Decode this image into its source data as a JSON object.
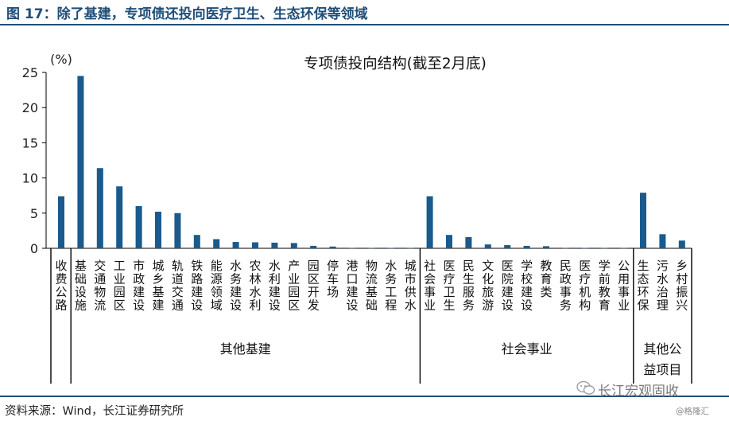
{
  "figure": {
    "title": "图 17：除了基建，专项债还投向医疗卫生、生态环保等领域",
    "source": "资料来源：Wind，长江证券研究所",
    "watermark": "长江宏观固收",
    "watermark_handle": "@格隆汇"
  },
  "colors": {
    "bar": "#1a5a8c",
    "header": "#1f4e79",
    "axis": "#000000"
  },
  "chart_data": {
    "type": "bar",
    "title": "专项债投向结构(截至2月底)",
    "ylabel": "(%)",
    "ylim": [
      0,
      25
    ],
    "yticks": [
      0,
      5,
      10,
      15,
      20,
      25
    ],
    "grid": false,
    "categories": [
      "收费公路",
      "基础设施",
      "交通物流",
      "工业园区",
      "市政建设",
      "城乡基建",
      "轨道交通",
      "铁路建设",
      "能源领域",
      "水务建设",
      "农林水利",
      "水利建设",
      "产业园区",
      "园区开发",
      "停车场",
      "港口建设",
      "物流基础",
      "水务工程",
      "城市供水",
      "社会事业",
      "医疗卫生",
      "民生服务",
      "文化旅游",
      "医院建设",
      "学校建设",
      "教育类",
      "民政事务",
      "医疗机构",
      "学前教育",
      "公用事业",
      "生态环保",
      "污水治理",
      "乡村振兴"
    ],
    "values": [
      7.4,
      24.5,
      11.4,
      8.8,
      6.0,
      5.2,
      5.0,
      1.9,
      1.3,
      0.9,
      0.85,
      0.8,
      0.75,
      0.35,
      0.25,
      0.05,
      0.05,
      0.05,
      0.05,
      7.4,
      1.9,
      1.6,
      0.55,
      0.45,
      0.35,
      0.3,
      0.05,
      0.05,
      0.05,
      0.05,
      7.9,
      2.0,
      1.1
    ],
    "groups": [
      {
        "label": "",
        "start": 0,
        "end": 0
      },
      {
        "label": "其他基建",
        "start": 1,
        "end": 18
      },
      {
        "label": "社会事业",
        "start": 19,
        "end": 29
      },
      {
        "label_lines": [
          "其他公",
          "益项目"
        ],
        "start": 30,
        "end": 32
      }
    ]
  }
}
